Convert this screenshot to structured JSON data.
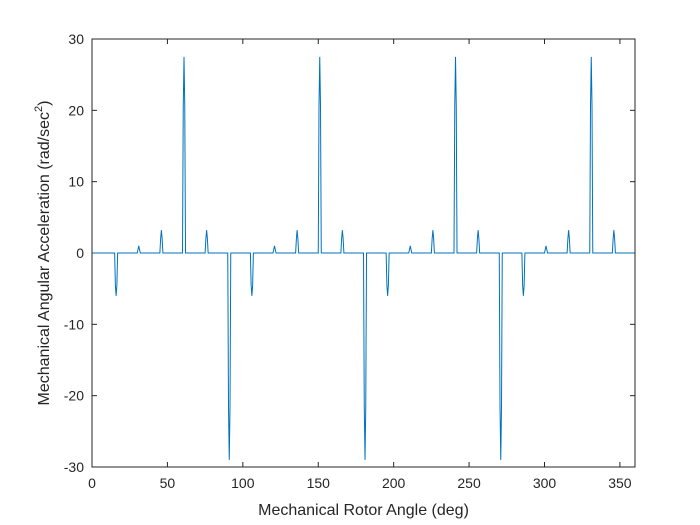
{
  "chart_data": {
    "type": "line",
    "xlabel": "Mechanical Rotor Angle (deg)",
    "ylabel": "Mechanical Angular Acceleration (rad/sec²)",
    "ylabel_parts": {
      "main": "Mechanical Angular Acceleration (rad/sec",
      "superscript": "2",
      "end": ")"
    },
    "xlim": [
      0,
      360
    ],
    "ylim": [
      -30,
      30
    ],
    "xticks": [
      0,
      50,
      100,
      150,
      200,
      250,
      300,
      350
    ],
    "yticks": [
      -30,
      -20,
      -10,
      0,
      10,
      20,
      30
    ],
    "xtick_labels": [
      "0",
      "50",
      "100",
      "150",
      "200",
      "250",
      "300",
      "350"
    ],
    "ytick_labels": [
      "-30",
      "-20",
      "-10",
      "0",
      "10",
      "20",
      "30"
    ],
    "grid": false,
    "series_color": "#0072BD",
    "series": [
      {
        "x": [
          0,
          15,
          15.5,
          16,
          16.5,
          17,
          30,
          30.5,
          31,
          31.5,
          32,
          45,
          45.5,
          46,
          46.5,
          47,
          60,
          60.5,
          61,
          61.5,
          62,
          75,
          75.5,
          76,
          76.5,
          77,
          90,
          90.5,
          91,
          91.5,
          92,
          105,
          105.5,
          106,
          106.5,
          107,
          120,
          120.5,
          121,
          121.5,
          122,
          135,
          135.5,
          136,
          136.5,
          137,
          150,
          150.5,
          151,
          151.5,
          152,
          165,
          165.5,
          166,
          166.5,
          167,
          180,
          180.5,
          181,
          181.5,
          182,
          195,
          195.5,
          196,
          196.5,
          197,
          210,
          210.5,
          211,
          211.5,
          212,
          225,
          225.5,
          226,
          226.5,
          227,
          240,
          240.5,
          241,
          241.5,
          242,
          255,
          255.5,
          256,
          256.5,
          257,
          270,
          270.5,
          271,
          271.5,
          272,
          285,
          285.5,
          286,
          286.5,
          287,
          300,
          300.5,
          301,
          301.5,
          302,
          315,
          315.5,
          316,
          316.5,
          317,
          330,
          330.5,
          331,
          331.5,
          332,
          345,
          345.5,
          346,
          346.5,
          347,
          360
        ],
        "y": [
          0,
          0,
          -4.5,
          -6,
          -4.5,
          0,
          0,
          0.5,
          1,
          0.5,
          0,
          0,
          2,
          3.2,
          2,
          0,
          0,
          20.5,
          27.5,
          20.5,
          0,
          0,
          2,
          3.2,
          2,
          0,
          0,
          -21.5,
          -29,
          -21.5,
          0,
          0,
          -4.5,
          -6,
          -4.5,
          0,
          0,
          0.5,
          1,
          0.5,
          0,
          0,
          2,
          3.2,
          2,
          0,
          0,
          20.5,
          27.5,
          20.5,
          0,
          0,
          2,
          3.2,
          2,
          0,
          0,
          -21.5,
          -29,
          -21.5,
          0,
          0,
          -4.5,
          -6,
          -4.5,
          0,
          0,
          0.5,
          1,
          0.5,
          0,
          0,
          2,
          3.2,
          2,
          0,
          0,
          20.5,
          27.5,
          20.5,
          0,
          0,
          2,
          3.2,
          2,
          0,
          0,
          -21.5,
          -29,
          -21.5,
          0,
          0,
          -4.5,
          -6,
          -4.5,
          0,
          0,
          0.5,
          1,
          0.5,
          0,
          0,
          2,
          3.2,
          2,
          0,
          0,
          20.5,
          27.5,
          20.5,
          0,
          0,
          2,
          3.2,
          2,
          0,
          0
        ]
      }
    ]
  }
}
